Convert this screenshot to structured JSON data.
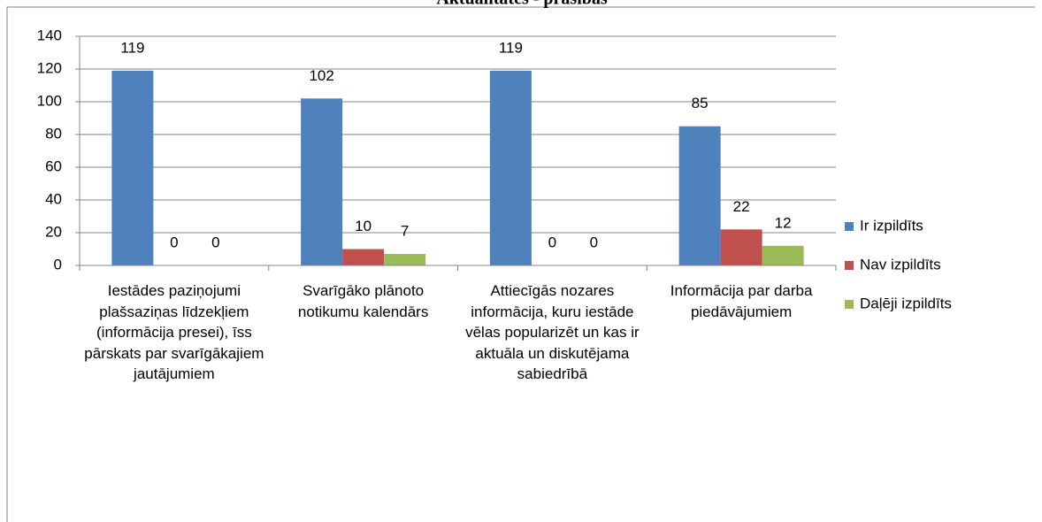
{
  "chart_data": {
    "type": "bar",
    "title": "Aktualitātes - prasības",
    "categories": [
      "Iestādes paziņojumi plašsaziņas līdzekļiem (informācija presei), īss pārskats par svarīgākajiem jautājumiem",
      "Svarīgāko plānoto notikumu kalendārs",
      "Attiecīgās nozares informācija, kuru iestāde vēlas popularizēt un kas ir aktuāla un diskutējama sabiedrībā",
      "Informācija par darba piedāvājumiem"
    ],
    "series": [
      {
        "name": "Ir izpildīts",
        "color": "#4f81bd",
        "values": [
          119,
          102,
          119,
          85
        ]
      },
      {
        "name": "Nav izpildīts",
        "color": "#c0504d",
        "values": [
          0,
          10,
          0,
          22
        ]
      },
      {
        "name": "Daļēji izpildīts",
        "color": "#9bbb59",
        "values": [
          0,
          7,
          0,
          12
        ]
      }
    ],
    "ylim": [
      0,
      140
    ],
    "yticks": [
      0,
      20,
      40,
      60,
      80,
      100,
      120,
      140
    ],
    "grid": true,
    "legend": "right"
  }
}
